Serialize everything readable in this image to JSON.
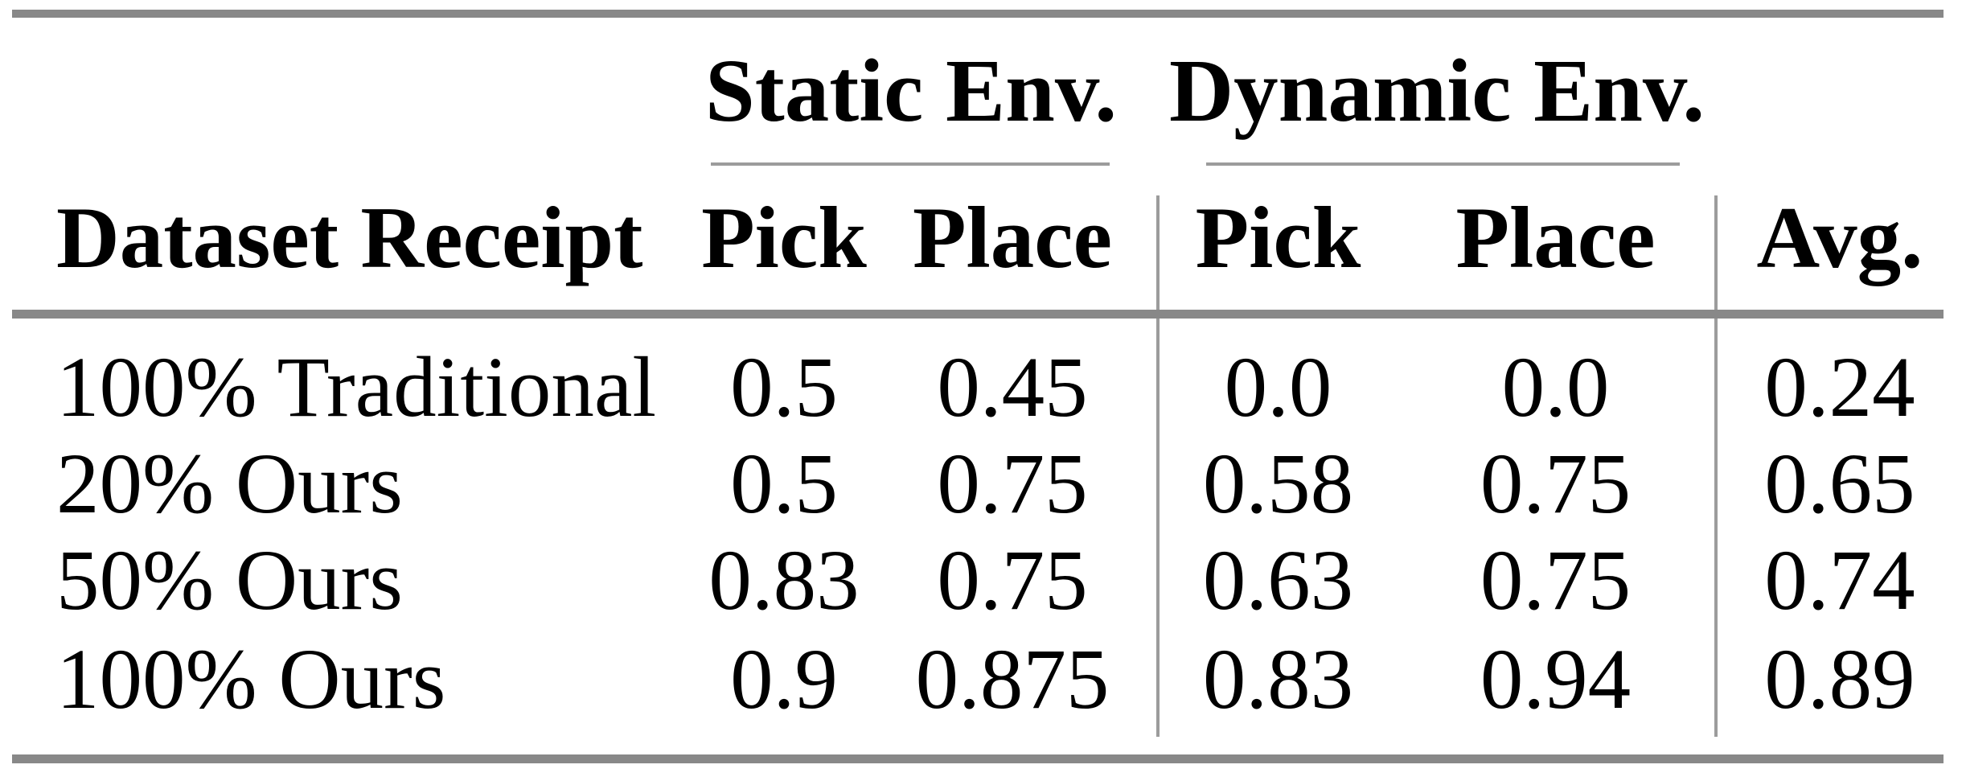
{
  "table": {
    "column_groups": {
      "static": "Static Env.",
      "dynamic": "Dynamic Env."
    },
    "headers": {
      "row_label": "Dataset Receipt",
      "static_pick": "Pick",
      "static_place": "Place",
      "dynamic_pick": "Pick",
      "dynamic_place": "Place",
      "avg": "Avg."
    },
    "rows": [
      {
        "label": "100% Traditional",
        "static_pick": "0.5",
        "static_place": "0.45",
        "dynamic_pick": "0.0",
        "dynamic_place": "0.0",
        "avg": "0.24"
      },
      {
        "label": "20% Ours",
        "static_pick": "0.5",
        "static_place": "0.75",
        "dynamic_pick": "0.58",
        "dynamic_place": "0.75",
        "avg": "0.65"
      },
      {
        "label": "50% Ours",
        "static_pick": "0.83",
        "static_place": "0.75",
        "dynamic_pick": "0.63",
        "dynamic_place": "0.75",
        "avg": "0.74"
      },
      {
        "label": "100% Ours",
        "static_pick": "0.9",
        "static_place": "0.875",
        "dynamic_pick": "0.83",
        "dynamic_place": "0.94",
        "avg": "0.89"
      }
    ]
  },
  "colors": {
    "thick_rule": "#888888",
    "thin_rule": "#9c9c9c",
    "text": "#000000",
    "background": "#ffffff"
  }
}
